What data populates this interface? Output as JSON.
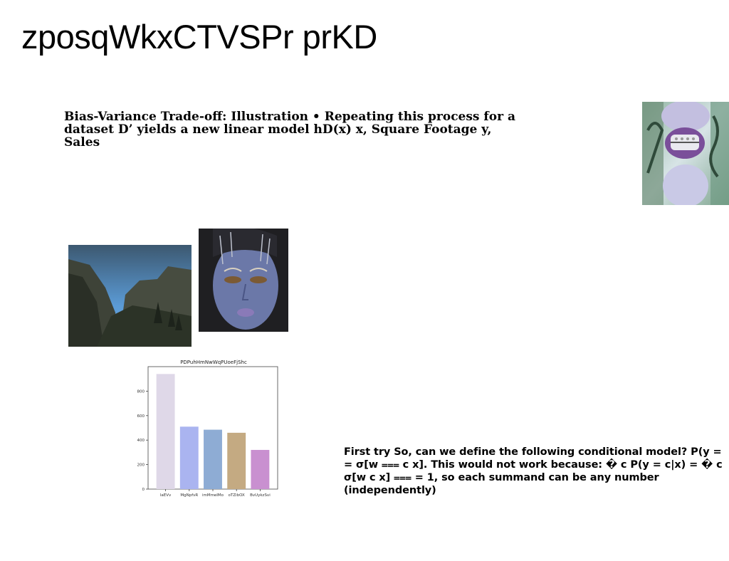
{
  "slide": {
    "title": "zposqWkxCTVSPr prKD",
    "para1": "Bias-Variance Trade-off: Illustration • Repeating this process for a dataset D’ yields a new linear model hD(x) x, Square Footage y, Sales",
    "para2": "First try So, can we define the following conditional model? P(y = = σ[w ⩶ c x]. This would not work because: � c P(y = c|x) = � c σ[w c x] ⩶ = 1, so each summand can be any number (independently)"
  },
  "images": {
    "top_right": "photo-face-grillz-icon",
    "mountain": "photo-mountain-valley-icon",
    "face": "photo-blue-face-icon"
  },
  "chart_data": {
    "type": "bar",
    "title": "PDPuhHmNwWqPUoeFjShc",
    "categories": [
      "laEVv",
      "MgNpfvR",
      "imMmeIMo",
      "oTZibOX",
      "BvUykzSvi"
    ],
    "values": [
      940,
      510,
      485,
      460,
      320
    ],
    "colors": [
      "#dfd8e8",
      "#aab4f0",
      "#8eacd4",
      "#c4aa82",
      "#c990d0"
    ],
    "ylim": [
      0,
      1000
    ],
    "yticks": [
      0,
      200,
      400,
      600,
      800
    ],
    "xlabel": "",
    "ylabel": "",
    "grid": false
  }
}
